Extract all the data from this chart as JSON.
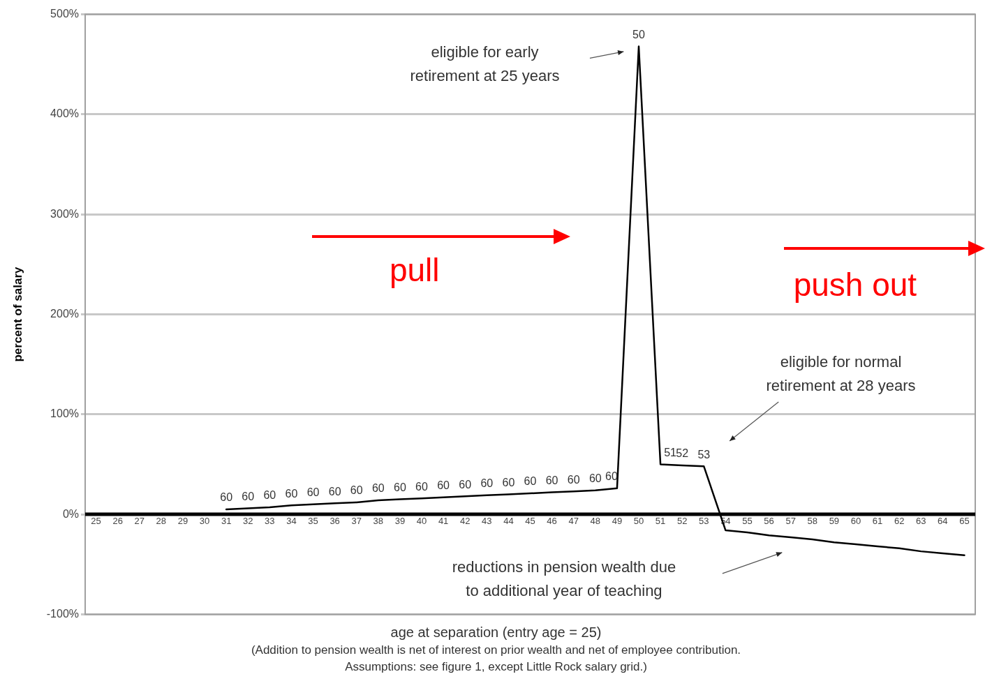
{
  "chart_data": {
    "type": "line",
    "ylabel": "percent of salary",
    "xlabel": "age at separation (entry age = 25)",
    "categories": [
      "25",
      "26",
      "27",
      "28",
      "29",
      "30",
      "31",
      "32",
      "33",
      "34",
      "35",
      "36",
      "37",
      "38",
      "39",
      "40",
      "41",
      "42",
      "43",
      "44",
      "45",
      "46",
      "47",
      "48",
      "49",
      "50",
      "51",
      "52",
      "53",
      "54",
      "55",
      "56",
      "57",
      "58",
      "59",
      "60",
      "61",
      "62",
      "63",
      "64",
      "65"
    ],
    "series": [
      {
        "color": "#000000",
        "values": [
          null,
          null,
          null,
          null,
          null,
          null,
          5,
          6,
          7,
          9,
          10,
          11,
          12,
          14,
          15,
          16,
          17,
          18,
          19,
          20,
          21,
          22,
          23,
          24,
          26,
          468,
          50,
          49,
          48,
          -16,
          -18,
          -21,
          -23,
          -25,
          -28,
          -30,
          -32,
          -34,
          -37,
          -39,
          -41
        ]
      }
    ],
    "ylim": [
      -100,
      500
    ],
    "yticks": [
      {
        "value": -100,
        "label": "-100%"
      },
      {
        "value": 0,
        "label": "0%"
      },
      {
        "value": 100,
        "label": "100%"
      },
      {
        "value": 200,
        "label": "200%"
      },
      {
        "value": 300,
        "label": "300%"
      },
      {
        "value": 400,
        "label": "400%"
      },
      {
        "value": 500,
        "label": "500%"
      }
    ],
    "grid": "y",
    "legend": false,
    "marker": "none",
    "line_style": "solid",
    "annotations": [
      "eligible for early\nretirement at 25 years",
      "eligible for normal\nretirement at 28 years",
      "reductions in pension wealth due\nto additional year of teaching",
      {
        "text": "60",
        "x": "31",
        "y": 5
      },
      {
        "text": "60",
        "x": "32",
        "y": 6
      },
      {
        "text": "60",
        "x": "33",
        "y": 7
      },
      {
        "text": "60",
        "x": "34",
        "y": 9
      },
      {
        "text": "60",
        "x": "35",
        "y": 10
      },
      {
        "text": "60",
        "x": "36",
        "y": 11
      },
      {
        "text": "60",
        "x": "37",
        "y": 12
      },
      {
        "text": "60",
        "x": "38",
        "y": 14
      },
      {
        "text": "60",
        "x": "39",
        "y": 15
      },
      {
        "text": "60",
        "x": "40",
        "y": 16
      },
      {
        "text": "60",
        "x": "41",
        "y": 17
      },
      {
        "text": "60",
        "x": "42",
        "y": 18
      },
      {
        "text": "60",
        "x": "43",
        "y": 19
      },
      {
        "text": "60",
        "x": "44",
        "y": 20
      },
      {
        "text": "60",
        "x": "45",
        "y": 21
      },
      {
        "text": "60",
        "x": "46",
        "y": 22
      },
      {
        "text": "60",
        "x": "47",
        "y": 23
      },
      {
        "text": "60",
        "x": "48",
        "y": 24
      },
      {
        "text": "60",
        "x": "49",
        "y": 26
      },
      {
        "text": "50",
        "x": "50",
        "y": 468
      },
      {
        "text": "51",
        "x": "51",
        "y": 50
      },
      {
        "text": "52",
        "x": "52",
        "y": 49
      },
      {
        "text": "53",
        "x": "53",
        "y": 48
      },
      "pull",
      "push out",
      "(Addition to pension wealth is net of interest on prior wealth and net of employee contribution.",
      "Assumptions:  see figure 1, except Little Rock salary grid.)"
    ]
  }
}
